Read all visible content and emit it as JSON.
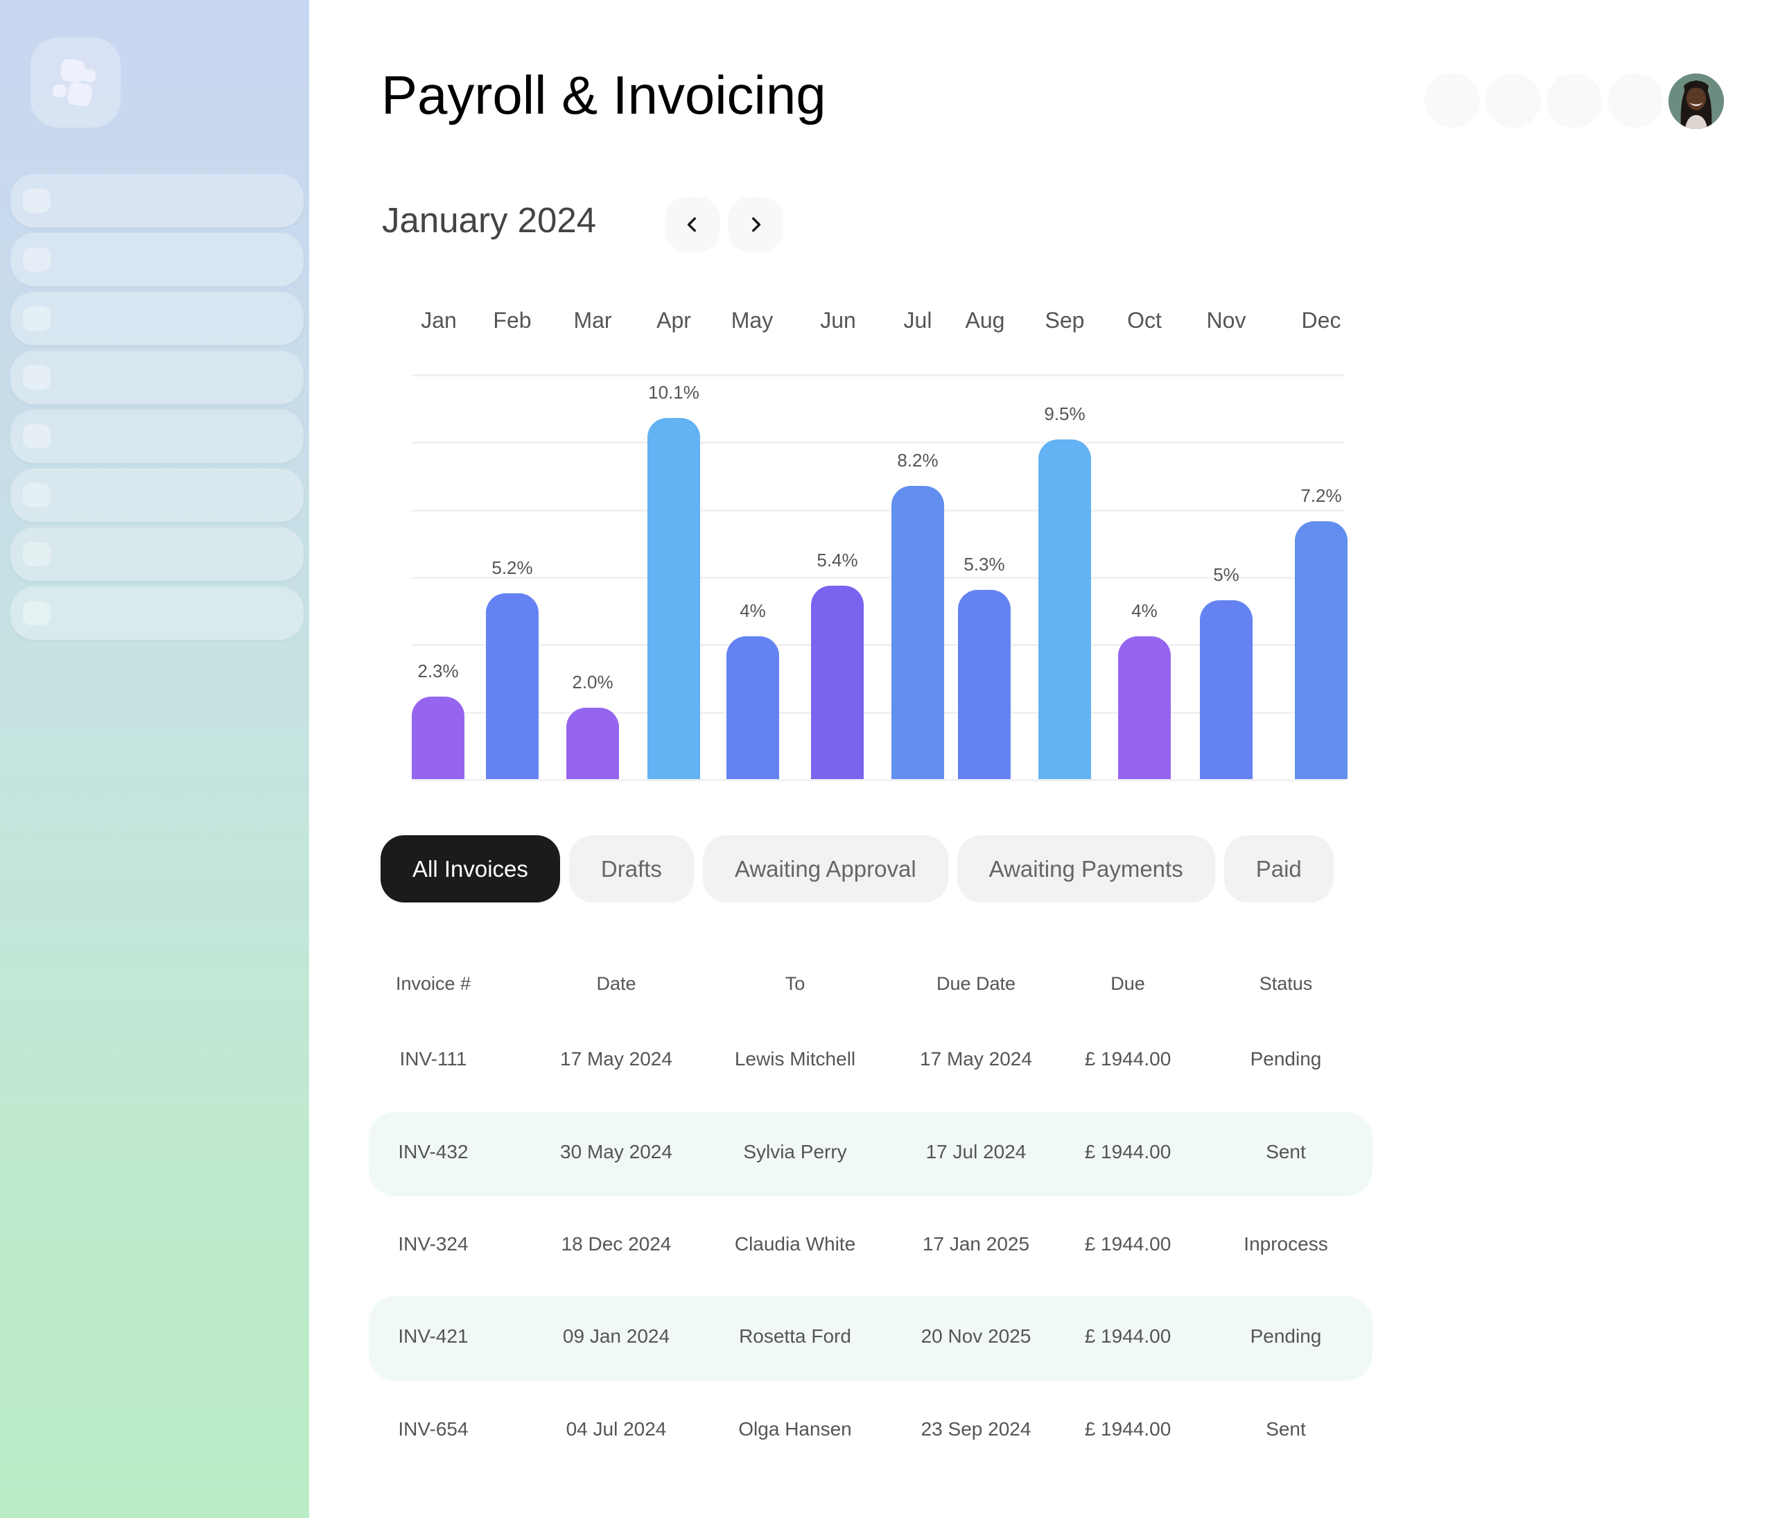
{
  "sidebar": {
    "logo": "app-logo-cubes-icon",
    "items": [
      {
        "label": "",
        "icon": "nav-placeholder-icon"
      },
      {
        "label": "",
        "icon": "nav-placeholder-icon"
      },
      {
        "label": "",
        "icon": "nav-placeholder-icon"
      },
      {
        "label": "",
        "icon": "nav-placeholder-icon"
      },
      {
        "label": "",
        "icon": "nav-placeholder-icon"
      },
      {
        "label": "",
        "icon": "nav-placeholder-icon"
      },
      {
        "label": "",
        "icon": "nav-placeholder-icon"
      },
      {
        "label": "",
        "icon": "nav-placeholder-icon"
      }
    ],
    "gradient": [
      "#c9d6f1",
      "#baedc6"
    ]
  },
  "header": {
    "title": "Payroll & Invoicing",
    "action_placeholders": 4,
    "avatar": "user-avatar"
  },
  "period": {
    "label": "January 2024",
    "prev_icon": "chevron-left-icon",
    "next_icon": "chevron-right-icon"
  },
  "colors": {
    "purple": "#9665f0",
    "violet": "#7a63ee",
    "blue": "#6482f2",
    "mid_blue": "#628fef",
    "light_blue": "#63b2f3",
    "active_tab": "#1b1b1b",
    "row_highlight": "#f1f8f8"
  },
  "chart_data": {
    "type": "bar",
    "title": "",
    "xlabel": "",
    "ylabel": "",
    "categories": [
      "Jan",
      "Feb",
      "Mar",
      "Apr",
      "May",
      "Jun",
      "Jul",
      "Aug",
      "Sep",
      "Oct",
      "Nov",
      "Dec"
    ],
    "values": [
      2.3,
      5.2,
      2.0,
      10.1,
      4,
      5.4,
      8.2,
      5.3,
      9.5,
      4,
      5,
      7.2
    ],
    "labels": [
      "2.3%",
      "5.2%",
      "2.0%",
      "10.1%",
      "4%",
      "5.4%",
      "8.2%",
      "5.3%",
      "9.5%",
      "4%",
      "5%",
      "7.2%"
    ],
    "bar_colors": [
      "#9665f0",
      "#6482f2",
      "#9665f0",
      "#63b2f3",
      "#6482f2",
      "#7a63ee",
      "#628fef",
      "#6482f2",
      "#63b2f3",
      "#9665f0",
      "#6482f2",
      "#628fef"
    ],
    "unit": "%",
    "grid": true,
    "legend": "none",
    "x_axis_position": "top"
  },
  "tabs": [
    {
      "label": "All Invoices",
      "active": true
    },
    {
      "label": "Drafts",
      "active": false
    },
    {
      "label": "Awaiting Approval",
      "active": false
    },
    {
      "label": "Awaiting Payments",
      "active": false
    },
    {
      "label": "Paid",
      "active": false
    }
  ],
  "table": {
    "columns": [
      "Invoice #",
      "Date",
      "To",
      "Due Date",
      "Due",
      "Status"
    ],
    "rows": [
      [
        "INV-111",
        "17 May 2024",
        "Lewis Mitchell",
        "17 May 2024",
        "£ 1944.00",
        "Pending"
      ],
      [
        "INV-432",
        "30 May 2024",
        "Sylvia Perry",
        "17 Jul 2024",
        "£ 1944.00",
        "Sent"
      ],
      [
        "INV-324",
        "18 Dec 2024",
        "Claudia White",
        "17 Jan 2025",
        "£ 1944.00",
        "Inprocess"
      ],
      [
        "INV-421",
        "09 Jan 2024",
        "Rosetta Ford",
        "20 Nov 2025",
        "£ 1944.00",
        "Pending"
      ],
      [
        "INV-654",
        "04 Jul 2024",
        "Olga Hansen",
        "23 Sep 2024",
        "£ 1944.00",
        "Sent"
      ]
    ]
  }
}
